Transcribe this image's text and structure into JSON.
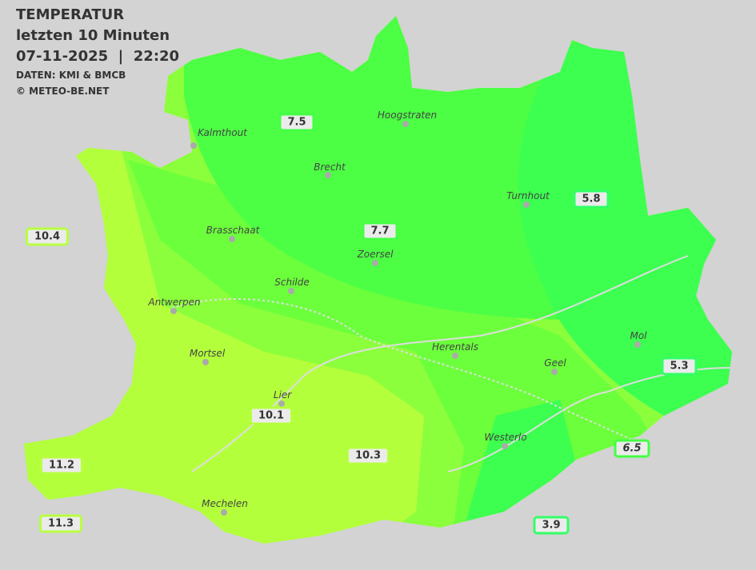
{
  "header": {
    "title": "TEMPERATUR",
    "subtitle": "letzten 10 Minuten",
    "datetime": "07-11-2025  |  22:20",
    "source": "DATEN: KMI & BMCB",
    "copyright": "© METEO-BE.NET"
  },
  "colors": {
    "background": "#d3d3d3",
    "warm": "#b4ff3c",
    "mild": "#8cff3c",
    "cool": "#5cff3c",
    "cold": "#3cff50"
  },
  "cities": [
    {
      "name": "Kalmthout"
    },
    {
      "name": "Hoogstraten"
    },
    {
      "name": "Brecht"
    },
    {
      "name": "Turnhout"
    },
    {
      "name": "Brasschaat"
    },
    {
      "name": "Zoersel"
    },
    {
      "name": "Schilde"
    },
    {
      "name": "Antwerpen"
    },
    {
      "name": "Mortsel"
    },
    {
      "name": "Herentals"
    },
    {
      "name": "Mol"
    },
    {
      "name": "Geel"
    },
    {
      "name": "Lier"
    },
    {
      "name": "Westerlo"
    },
    {
      "name": "Mechelen"
    }
  ],
  "readings": [
    {
      "value": "7.5"
    },
    {
      "value": "5.8"
    },
    {
      "value": "10.4"
    },
    {
      "value": "7.7"
    },
    {
      "value": "5.3"
    },
    {
      "value": "10.1"
    },
    {
      "value": "6.5"
    },
    {
      "value": "11.2"
    },
    {
      "value": "10.3"
    },
    {
      "value": "11.3"
    },
    {
      "value": "3.9"
    }
  ]
}
